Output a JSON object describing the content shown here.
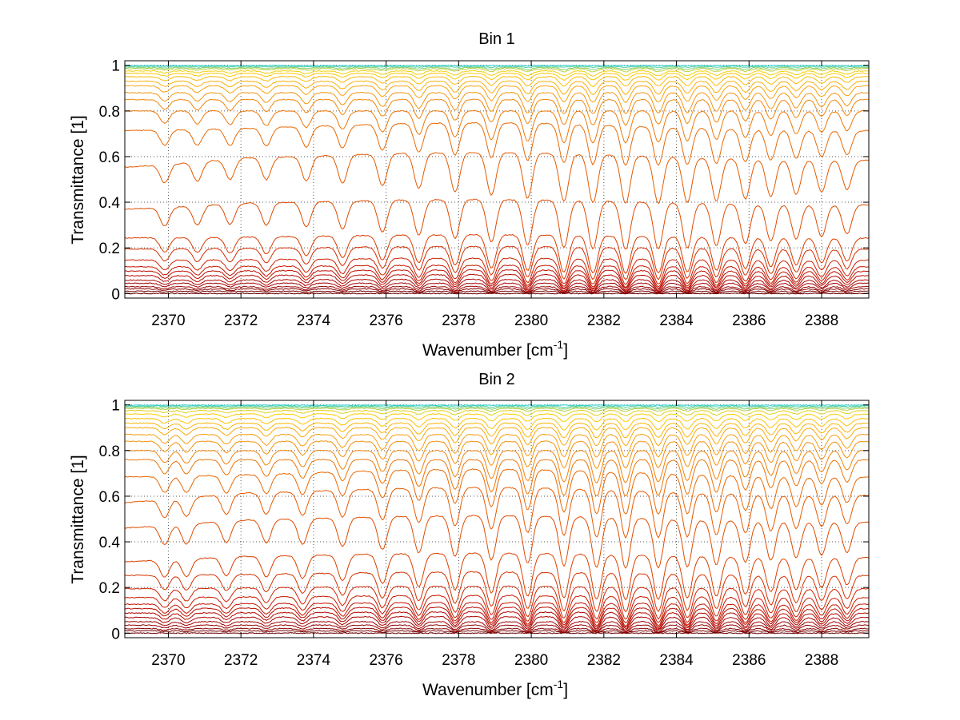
{
  "chart_data": [
    {
      "type": "line",
      "title": "Bin 1",
      "xlabel": "Wavenumber [cm",
      "xlabel_sup": "-1",
      "xlabel_end": "]",
      "ylabel": "Transmittance [1]",
      "xlim": [
        2368.8,
        2389.3
      ],
      "ylim": [
        -0.02,
        1.02
      ],
      "xticks": [
        2370,
        2372,
        2374,
        2376,
        2378,
        2380,
        2382,
        2384,
        2386,
        2388
      ],
      "xtick_labels": [
        "2370",
        "2372",
        "2374",
        "2376",
        "2378",
        "2380",
        "2382",
        "2384",
        "2386",
        "2388"
      ],
      "yticks": [
        0,
        0.2,
        0.4,
        0.6,
        0.8,
        1
      ],
      "ytick_labels": [
        "0",
        "0.2",
        "0.4",
        "0.6",
        "0.8",
        "1"
      ],
      "grid": true,
      "colormap": [
        "#6b0000",
        "#a80000",
        "#cc1a00",
        "#e65a00",
        "#f59a10",
        "#ffd000",
        "#22d0d0"
      ],
      "line_centers": [
        2369.9,
        2370.8,
        2371.7,
        2372.7,
        2373.8,
        2374.8,
        2375.9,
        2376.9,
        2377.9,
        2378.9,
        2379.9,
        2380.9,
        2381.7,
        2382.6,
        2383.5,
        2384.3,
        2385.1,
        2385.9,
        2386.6,
        2387.3,
        2388.0,
        2388.7
      ],
      "series_baselines": [
        0.0,
        0.01,
        0.02,
        0.03,
        0.045,
        0.06,
        0.08,
        0.1,
        0.12,
        0.15,
        0.2,
        0.25,
        0.4,
        0.6,
        0.73,
        0.8,
        0.85,
        0.88,
        0.91,
        0.93,
        0.95,
        0.965,
        0.975,
        0.985,
        0.99,
        0.995,
        1.0
      ]
    },
    {
      "type": "line",
      "title": "Bin 2",
      "xlabel": "Wavenumber [cm",
      "xlabel_sup": "-1",
      "xlabel_end": "]",
      "ylabel": "Transmittance [1]",
      "xlim": [
        2368.8,
        2389.3
      ],
      "ylim": [
        -0.02,
        1.02
      ],
      "xticks": [
        2370,
        2372,
        2374,
        2376,
        2378,
        2380,
        2382,
        2384,
        2386,
        2388
      ],
      "xtick_labels": [
        "2370",
        "2372",
        "2374",
        "2376",
        "2378",
        "2380",
        "2382",
        "2384",
        "2386",
        "2388"
      ],
      "yticks": [
        0,
        0.2,
        0.4,
        0.6,
        0.8,
        1
      ],
      "ytick_labels": [
        "0",
        "0.2",
        "0.4",
        "0.6",
        "0.8",
        "1"
      ],
      "grid": true,
      "colormap": [
        "#6b0000",
        "#a80000",
        "#cc1a00",
        "#e65a00",
        "#f59a10",
        "#ffd000",
        "#22d0d0"
      ],
      "line_centers": [
        2369.9,
        2370.5,
        2371.6,
        2372.7,
        2373.7,
        2374.8,
        2375.9,
        2376.9,
        2377.9,
        2378.9,
        2379.9,
        2380.9,
        2381.8,
        2382.6,
        2383.5,
        2384.3,
        2385.1,
        2385.9,
        2386.6,
        2387.3,
        2388.0,
        2388.7
      ],
      "series_baselines": [
        0.0,
        0.01,
        0.02,
        0.035,
        0.05,
        0.07,
        0.09,
        0.11,
        0.13,
        0.16,
        0.2,
        0.26,
        0.34,
        0.5,
        0.62,
        0.7,
        0.76,
        0.8,
        0.84,
        0.87,
        0.9,
        0.92,
        0.94,
        0.96,
        0.975,
        0.985,
        0.99,
        0.995,
        1.0
      ]
    }
  ]
}
